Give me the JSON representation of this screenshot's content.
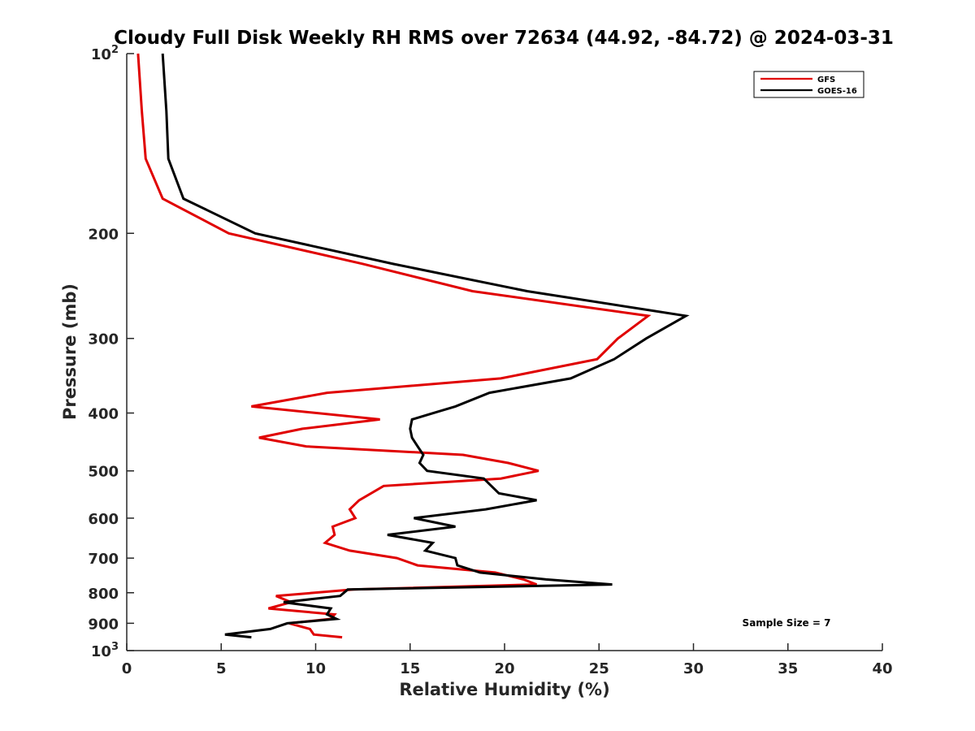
{
  "chart_data": {
    "type": "line",
    "title": "Cloudy Full Disk Weekly RH RMS over 72634 (44.92, -84.72) @ 2024-03-31",
    "xlabel": "Relative Humidity (%)",
    "ylabel": "Pressure (mb)",
    "xlim": [
      0,
      40
    ],
    "ylim": [
      100,
      1000
    ],
    "yscale": "log",
    "y_reversed": true,
    "grid": false,
    "legend_position": "top-right",
    "x_ticks": [
      {
        "value": 0,
        "label": "0"
      },
      {
        "value": 5,
        "label": "5"
      },
      {
        "value": 10,
        "label": "10"
      },
      {
        "value": 15,
        "label": "15"
      },
      {
        "value": 20,
        "label": "20"
      },
      {
        "value": 25,
        "label": "25"
      },
      {
        "value": 30,
        "label": "30"
      },
      {
        "value": 35,
        "label": "35"
      },
      {
        "value": 40,
        "label": "40"
      }
    ],
    "y_ticks": [
      {
        "value": 100,
        "label": "10",
        "sup": "2"
      },
      {
        "value": 200,
        "label": "200",
        "sup": ""
      },
      {
        "value": 300,
        "label": "300",
        "sup": ""
      },
      {
        "value": 400,
        "label": "400",
        "sup": ""
      },
      {
        "value": 500,
        "label": "500",
        "sup": ""
      },
      {
        "value": 600,
        "label": "600",
        "sup": ""
      },
      {
        "value": 700,
        "label": "700",
        "sup": ""
      },
      {
        "value": 800,
        "label": "800",
        "sup": ""
      },
      {
        "value": 900,
        "label": "900",
        "sup": ""
      },
      {
        "value": 1000,
        "label": "10",
        "sup": "3"
      }
    ],
    "series": [
      {
        "name": "GFS",
        "color": "#e00000",
        "points": [
          [
            0.6,
            100
          ],
          [
            0.8,
            125
          ],
          [
            1.0,
            150
          ],
          [
            1.9,
            175
          ],
          [
            5.4,
            200
          ],
          [
            12.5,
            225
          ],
          [
            18.3,
            250
          ],
          [
            27.6,
            275
          ],
          [
            26.0,
            300
          ],
          [
            24.9,
            325
          ],
          [
            19.8,
            350
          ],
          [
            10.6,
            370
          ],
          [
            6.6,
            390
          ],
          [
            13.4,
            410
          ],
          [
            9.3,
            425
          ],
          [
            7.0,
            440
          ],
          [
            9.5,
            455
          ],
          [
            17.8,
            470
          ],
          [
            20.2,
            485
          ],
          [
            21.8,
            500
          ],
          [
            19.8,
            515
          ],
          [
            13.6,
            530
          ],
          [
            12.3,
            560
          ],
          [
            11.8,
            580
          ],
          [
            12.1,
            600
          ],
          [
            10.9,
            620
          ],
          [
            11.0,
            640
          ],
          [
            10.5,
            660
          ],
          [
            11.8,
            680
          ],
          [
            14.3,
            700
          ],
          [
            15.4,
            720
          ],
          [
            19.5,
            740
          ],
          [
            21.0,
            760
          ],
          [
            21.7,
            775
          ],
          [
            12.0,
            790
          ],
          [
            7.9,
            810
          ],
          [
            8.7,
            830
          ],
          [
            7.5,
            850
          ],
          [
            11.0,
            870
          ],
          [
            10.8,
            885
          ],
          [
            8.6,
            900
          ],
          [
            9.7,
            920
          ],
          [
            9.9,
            940
          ],
          [
            11.4,
            950
          ]
        ]
      },
      {
        "name": "GOES-16",
        "color": "#000000",
        "points": [
          [
            1.9,
            100
          ],
          [
            2.1,
            125
          ],
          [
            2.2,
            150
          ],
          [
            3.0,
            175
          ],
          [
            6.8,
            200
          ],
          [
            14.1,
            225
          ],
          [
            21.2,
            250
          ],
          [
            29.6,
            275
          ],
          [
            27.5,
            300
          ],
          [
            25.8,
            325
          ],
          [
            23.5,
            350
          ],
          [
            19.2,
            370
          ],
          [
            17.4,
            390
          ],
          [
            15.1,
            410
          ],
          [
            15.0,
            425
          ],
          [
            15.1,
            440
          ],
          [
            15.4,
            455
          ],
          [
            15.7,
            470
          ],
          [
            15.5,
            485
          ],
          [
            15.9,
            500
          ],
          [
            18.9,
            515
          ],
          [
            19.3,
            530
          ],
          [
            19.7,
            545
          ],
          [
            21.7,
            560
          ],
          [
            19.0,
            580
          ],
          [
            15.2,
            600
          ],
          [
            17.4,
            620
          ],
          [
            13.8,
            640
          ],
          [
            16.2,
            660
          ],
          [
            15.8,
            680
          ],
          [
            17.4,
            700
          ],
          [
            17.5,
            720
          ],
          [
            18.7,
            740
          ],
          [
            22.2,
            760
          ],
          [
            25.7,
            775
          ],
          [
            11.7,
            790
          ],
          [
            11.3,
            810
          ],
          [
            8.3,
            830
          ],
          [
            10.8,
            850
          ],
          [
            10.6,
            870
          ],
          [
            11.1,
            885
          ],
          [
            8.5,
            900
          ],
          [
            7.6,
            920
          ],
          [
            5.2,
            940
          ],
          [
            6.6,
            950
          ]
        ]
      }
    ],
    "annotations": [
      "Sample Size = 7"
    ]
  }
}
